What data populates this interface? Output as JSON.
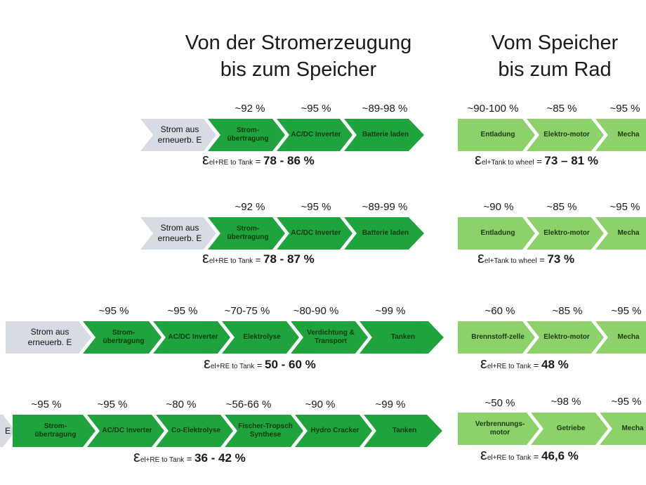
{
  "titles": {
    "left": [
      "Von der Stromerzeugung",
      "bis zum Speicher"
    ],
    "right": [
      "Vom Speicher",
      "bis zum Rad"
    ]
  },
  "rows": [
    {
      "left": {
        "steps": [
          {
            "label": "Strom aus erneuerb. E",
            "pct": ""
          },
          {
            "label": "Strom-übertragung",
            "pct": "~92 %"
          },
          {
            "label": "AC/DC Inverter",
            "pct": "~95 %"
          },
          {
            "label": "Batterie laden",
            "pct": "~89-98 %"
          }
        ],
        "eps": "ε",
        "sub": "el+RE to Tank",
        "eq": " = ",
        "value": "78 - 86 %"
      },
      "right": {
        "steps": [
          {
            "label": "Entladung",
            "pct": "~90-100 %"
          },
          {
            "label": "Elektro-motor",
            "pct": "~85 %"
          },
          {
            "label": "Mecha",
            "pct": "~95 %"
          }
        ],
        "eps": "ε",
        "sub": "el+Tank to wheel",
        "eq": " = ",
        "value": "73 – 81 %"
      }
    },
    {
      "left": {
        "steps": [
          {
            "label": "Strom aus erneuerb. E",
            "pct": ""
          },
          {
            "label": "Strom-übertragung",
            "pct": "~92 %"
          },
          {
            "label": "AC/DC Inverter",
            "pct": "~95 %"
          },
          {
            "label": "Batterie laden",
            "pct": "~89-99 %"
          }
        ],
        "eps": "ε",
        "sub": "el+RE to Tank",
        "eq": " = ",
        "value": "78 - 87 %"
      },
      "right": {
        "steps": [
          {
            "label": "Entladung",
            "pct": "~90 %"
          },
          {
            "label": "Elektro-motor",
            "pct": "~85 %"
          },
          {
            "label": "Mecha",
            "pct": "~95 %"
          }
        ],
        "eps": "ε",
        "sub": "el+Tank to wheel",
        "eq": " = ",
        "value": "73 %"
      }
    },
    {
      "left": {
        "steps": [
          {
            "label": "Strom aus erneuerb. E",
            "pct": ""
          },
          {
            "label": "Strom-übertragung",
            "pct": "~95 %"
          },
          {
            "label": "AC/DC Inverter",
            "pct": "~95 %"
          },
          {
            "label": "Elektrolyse",
            "pct": "~70-75 %"
          },
          {
            "label": "Verdichtung & Transport",
            "pct": "~80-90 %"
          },
          {
            "label": "Tanken",
            "pct": "~99 %"
          }
        ],
        "eps": "ε",
        "sub": "el+RE to Tank",
        "eq": " = ",
        "value": "50 - 60 %"
      },
      "right": {
        "steps": [
          {
            "label": "Brennstoff-zelle",
            "pct": "~60 %"
          },
          {
            "label": "Elektro-motor",
            "pct": "~85 %"
          },
          {
            "label": "Mecha",
            "pct": "~95 %"
          }
        ],
        "eps": "ε",
        "sub": "el+RE to Tank",
        "eq": " = ",
        "value": "48 %"
      }
    },
    {
      "left": {
        "steps": [
          {
            "label": "E",
            "pct": ""
          },
          {
            "label": "Strom-übertragung",
            "pct": "~95 %"
          },
          {
            "label": "AC/DC Inverter",
            "pct": "~95 %"
          },
          {
            "label": "Co-Elektrolyse",
            "pct": "~80 %"
          },
          {
            "label": "Fischer-Tropsch Synthese",
            "pct": "~56-66 %"
          },
          {
            "label": "Hydro Cracker",
            "pct": "~90 %"
          },
          {
            "label": "Tanken",
            "pct": "~99 %"
          }
        ],
        "eps": "ε",
        "sub": "el+RE to Tank",
        "eq": " = ",
        "value": "36 - 42 %"
      },
      "right": {
        "steps": [
          {
            "label": "Verbrennungs-motor",
            "pct": "~50 %"
          },
          {
            "label": "Getriebe",
            "pct": "~98 %"
          },
          {
            "label": "Mecha",
            "pct": "~95 %"
          }
        ],
        "eps": "ε",
        "sub": "el+RE to Tank",
        "eq": " = ",
        "value": "46,6 %"
      }
    }
  ]
}
